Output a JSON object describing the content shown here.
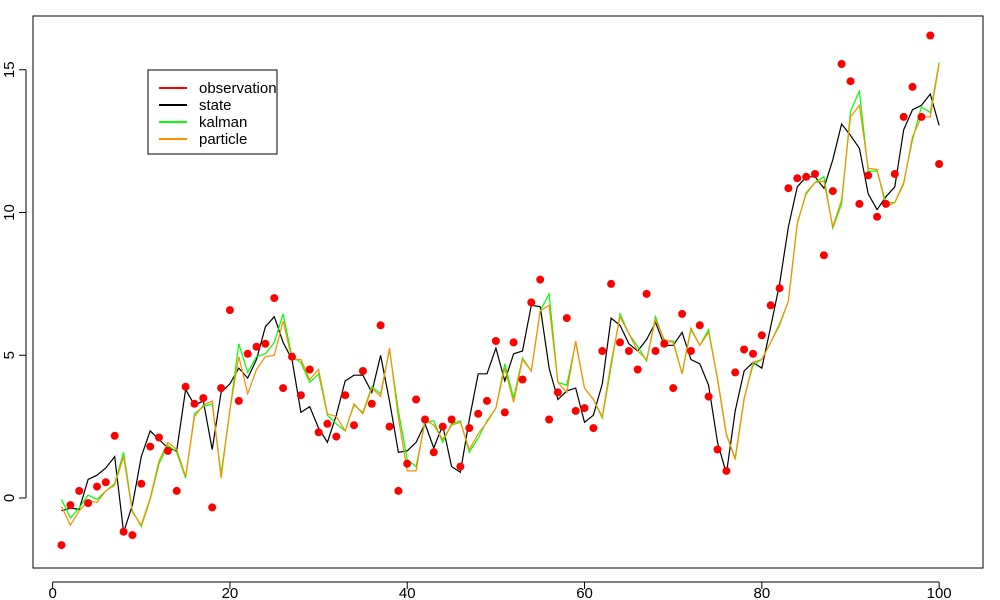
{
  "chart_data": {
    "type": "line",
    "title": "",
    "xlabel": "",
    "ylabel": "",
    "xlim": [
      1,
      100
    ],
    "ylim": [
      -2,
      17
    ],
    "x_ticks": [
      0,
      20,
      40,
      60,
      80,
      100
    ],
    "y_ticks": [
      0,
      5,
      10,
      15
    ],
    "x_tick_labels": [
      "0",
      "20",
      "40",
      "60",
      "80",
      "100"
    ],
    "y_tick_labels": [
      "0",
      "5",
      "10",
      "15"
    ],
    "grid": false,
    "legend_position": "top-left",
    "legend": [
      {
        "label": "observation",
        "color": "#ff0000"
      },
      {
        "label": "state",
        "color": "#000000"
      },
      {
        "label": "kalman",
        "color": "#00ff00"
      },
      {
        "label": "particle",
        "color": "#ff8c00"
      }
    ],
    "series": [
      {
        "name": "observation",
        "kind": "points",
        "color": "#ff0000",
        "values": [
          -1.65,
          -0.25,
          0.25,
          -0.18,
          0.4,
          0.55,
          2.18,
          -1.18,
          -1.3,
          0.5,
          1.8,
          2.12,
          1.65,
          0.25,
          3.9,
          3.3,
          3.5,
          -0.33,
          3.85,
          6.58,
          3.4,
          5.05,
          5.3,
          5.4,
          7.0,
          3.85,
          4.95,
          3.6,
          4.5,
          2.3,
          2.6,
          2.15,
          3.6,
          2.55,
          4.45,
          3.3,
          6.05,
          2.5,
          0.25,
          1.2,
          3.45,
          2.75,
          1.6,
          2.5,
          2.75,
          1.1,
          2.45,
          2.95,
          3.4,
          5.5,
          3.0,
          5.45,
          4.15,
          6.85,
          7.65,
          2.75,
          3.7,
          6.3,
          3.05,
          3.15,
          2.45,
          5.15,
          7.5,
          5.45,
          5.15,
          4.5,
          7.15,
          5.15,
          5.4,
          3.85,
          6.45,
          5.15,
          6.05,
          3.55,
          1.7,
          0.95,
          4.4,
          5.2,
          5.05,
          5.7,
          6.75,
          7.35,
          10.85,
          11.2,
          11.25,
          11.35,
          8.5,
          10.75,
          15.2,
          14.6,
          10.3,
          11.3,
          9.85,
          10.3,
          11.35,
          13.35,
          14.4,
          13.35,
          16.2,
          11.7
        ]
      },
      {
        "name": "state",
        "kind": "line",
        "color": "#000000",
        "values": [
          -0.45,
          -0.35,
          -0.4,
          0.65,
          0.8,
          1.05,
          1.45,
          -1.2,
          -0.25,
          1.45,
          2.35,
          2.05,
          1.75,
          1.65,
          3.8,
          3.25,
          3.4,
          1.7,
          3.7,
          4.0,
          4.55,
          4.2,
          4.85,
          6.0,
          6.35,
          5.45,
          4.85,
          3.0,
          3.2,
          2.45,
          1.95,
          2.9,
          4.1,
          4.3,
          4.3,
          3.7,
          5.0,
          3.4,
          1.6,
          1.65,
          1.95,
          2.6,
          1.75,
          2.55,
          1.1,
          0.9,
          2.75,
          4.35,
          4.35,
          5.25,
          4.1,
          5.05,
          5.15,
          6.75,
          6.7,
          4.55,
          3.45,
          3.75,
          3.85,
          2.65,
          2.9,
          4.0,
          6.3,
          6.05,
          5.4,
          5.15,
          5.55,
          6.15,
          5.35,
          5.35,
          5.8,
          4.85,
          4.7,
          3.95,
          1.95,
          0.85,
          3.05,
          4.45,
          4.75,
          4.55,
          6.0,
          7.5,
          9.5,
          10.9,
          11.25,
          11.25,
          10.85,
          11.85,
          13.1,
          12.7,
          12.25,
          10.65,
          10.1,
          10.55,
          10.9,
          12.9,
          13.6,
          13.75,
          14.15,
          13.05
        ]
      },
      {
        "name": "kalman",
        "kind": "line",
        "color": "#00ff00",
        "values": [
          -0.05,
          -0.7,
          -0.35,
          0.1,
          -0.05,
          0.25,
          0.5,
          1.6,
          -0.45,
          -1.0,
          -0.05,
          1.2,
          1.85,
          1.6,
          0.7,
          2.95,
          3.2,
          3.3,
          0.85,
          3.05,
          5.4,
          4.4,
          4.95,
          5.05,
          5.45,
          6.45,
          4.95,
          4.75,
          4.05,
          4.35,
          2.9,
          2.6,
          2.35,
          3.25,
          3.0,
          3.9,
          3.65,
          5.2,
          3.05,
          1.35,
          1.1,
          2.65,
          2.7,
          1.95,
          2.6,
          2.7,
          1.6,
          2.1,
          2.7,
          3.15,
          4.7,
          3.5,
          4.9,
          4.45,
          6.55,
          7.15,
          4.05,
          3.95,
          5.45,
          3.85,
          3.45,
          2.8,
          4.6,
          6.45,
          5.75,
          5.3,
          4.8,
          6.35,
          5.5,
          5.5,
          4.35,
          5.9,
          5.35,
          5.9,
          4.15,
          2.2,
          1.4,
          3.5,
          4.65,
          4.85,
          5.45,
          6.1,
          6.9,
          9.65,
          10.65,
          11.05,
          11.25,
          9.45,
          10.3,
          13.55,
          14.25,
          11.45,
          11.45,
          10.35,
          10.35,
          11.05,
          12.55,
          13.7,
          13.5,
          15.25
        ]
      },
      {
        "name": "particle",
        "kind": "line",
        "color": "#ff8c00",
        "values": [
          -0.3,
          -0.95,
          -0.45,
          -0.1,
          -0.15,
          0.25,
          0.45,
          1.45,
          -0.5,
          -0.95,
          0.0,
          1.3,
          1.95,
          1.7,
          0.75,
          2.85,
          3.25,
          3.4,
          0.7,
          3.1,
          4.95,
          3.65,
          4.5,
          4.95,
          5.0,
          6.2,
          4.85,
          4.85,
          4.15,
          4.5,
          2.95,
          2.85,
          2.35,
          3.3,
          2.95,
          3.85,
          3.55,
          5.25,
          2.8,
          0.95,
          0.95,
          2.75,
          2.55,
          2.05,
          2.55,
          2.65,
          1.7,
          2.25,
          2.65,
          3.15,
          4.55,
          3.35,
          4.85,
          4.45,
          6.55,
          6.75,
          4.05,
          3.7,
          5.5,
          3.85,
          3.45,
          2.85,
          4.75,
          6.35,
          5.75,
          5.15,
          4.85,
          6.25,
          5.55,
          5.45,
          4.35,
          5.95,
          5.35,
          5.8,
          4.2,
          2.25,
          1.35,
          3.45,
          4.75,
          4.85,
          5.45,
          6.05,
          6.9,
          9.6,
          10.7,
          11.05,
          11.1,
          9.5,
          10.45,
          13.35,
          13.75,
          11.55,
          11.5,
          10.2,
          10.35,
          11.0,
          12.65,
          13.35,
          13.35,
          15.2
        ]
      }
    ]
  }
}
